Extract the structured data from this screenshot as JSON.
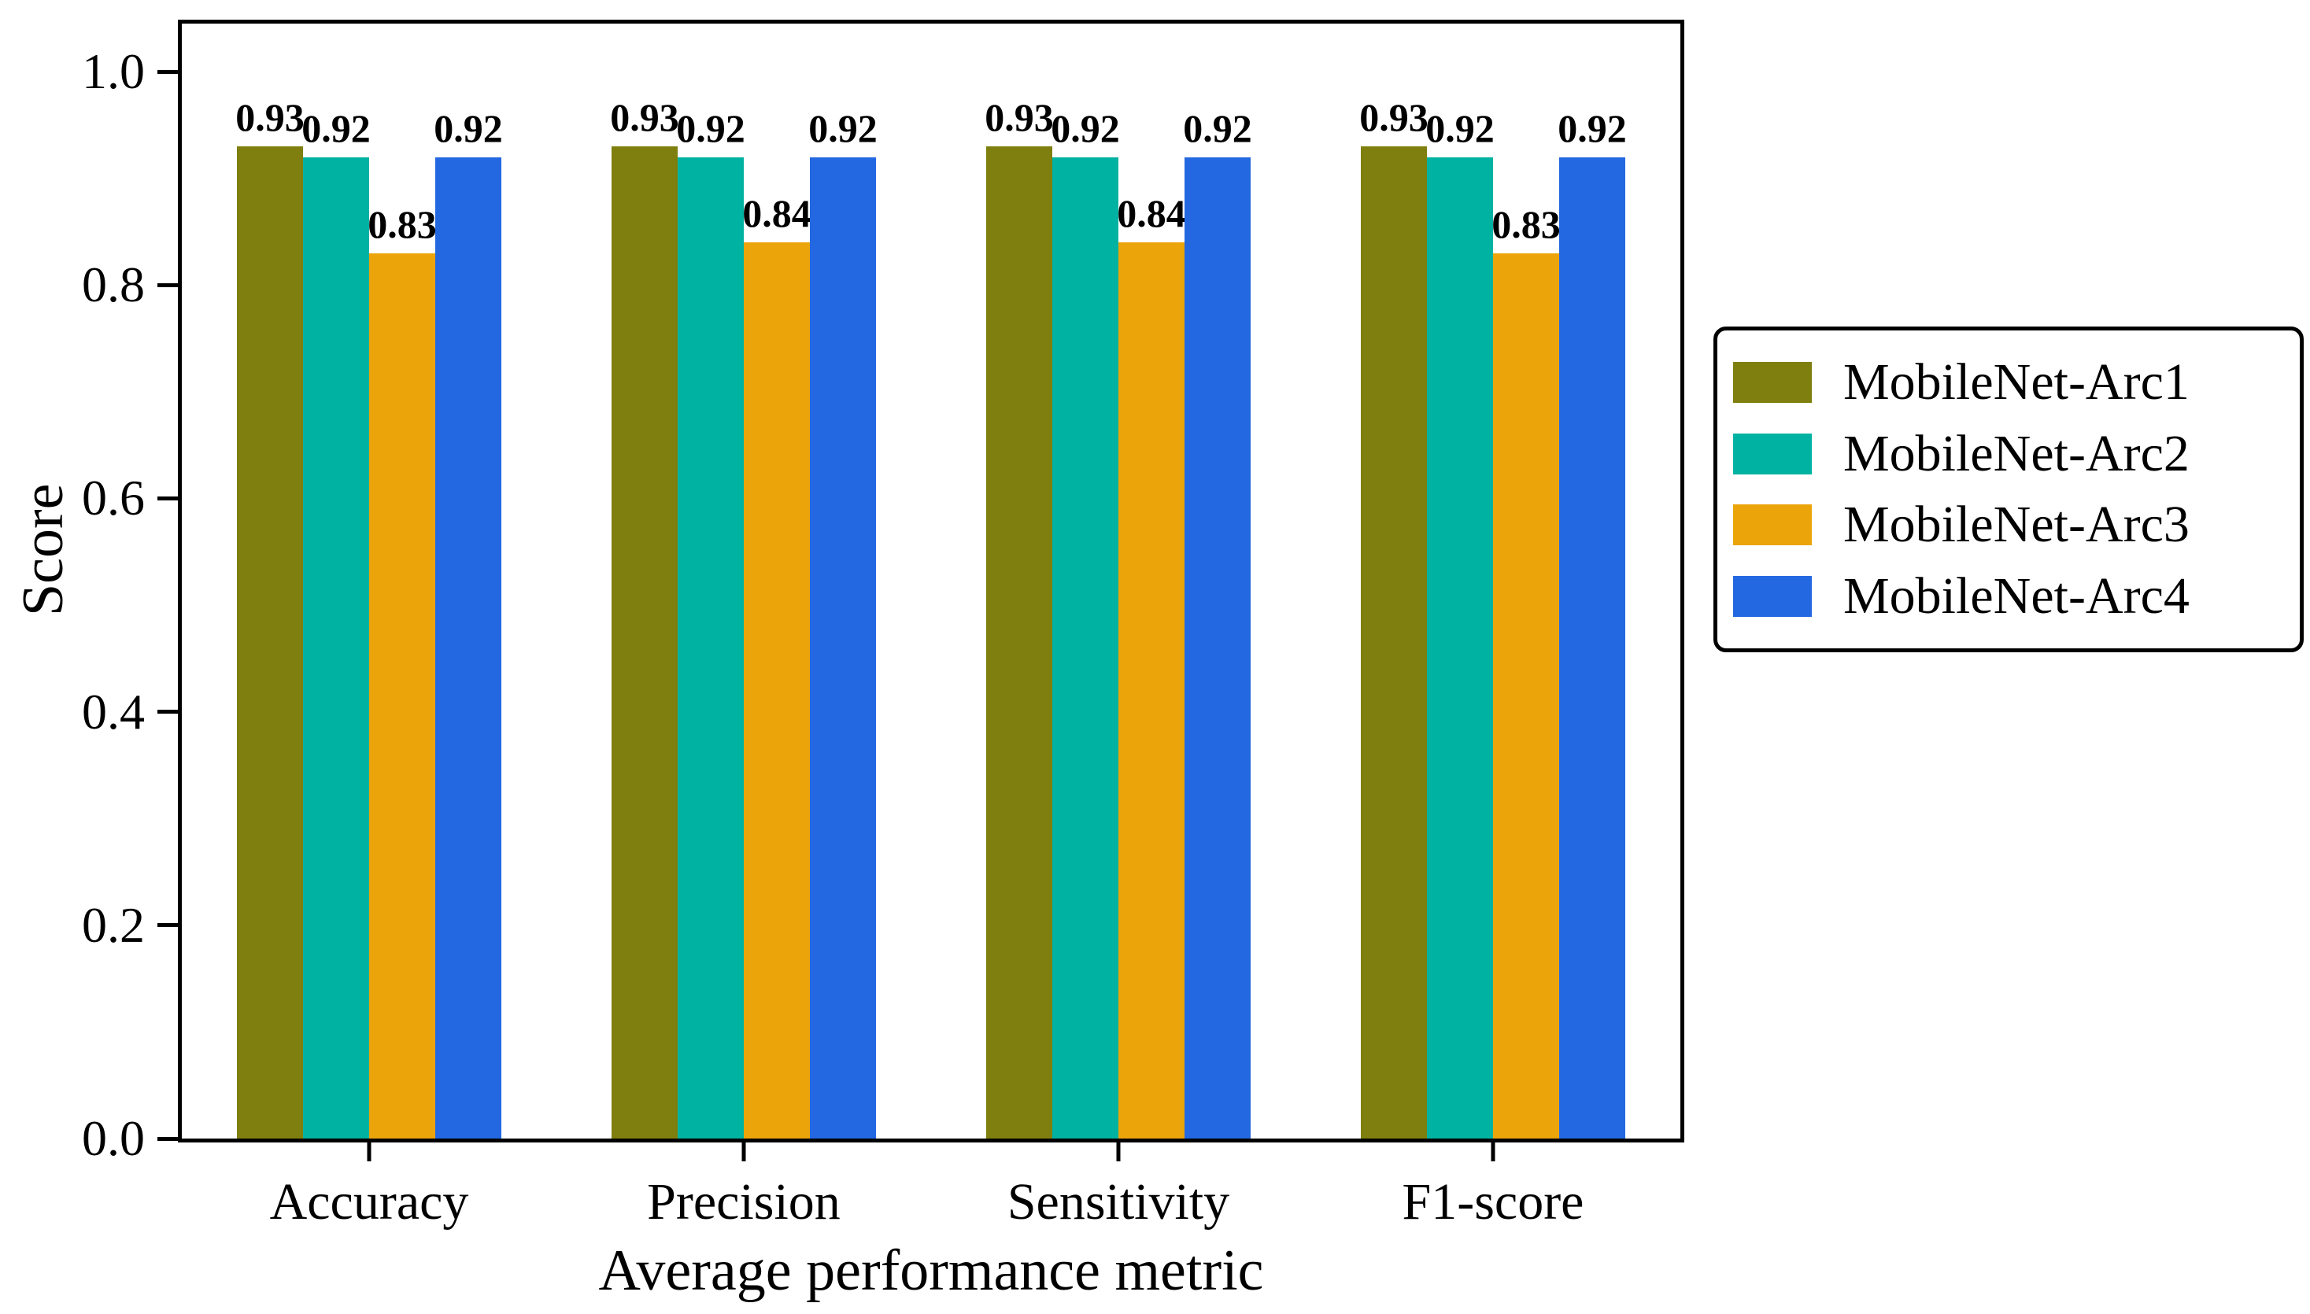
{
  "chart_data": {
    "type": "bar",
    "title": "",
    "xlabel": "Average performance metric",
    "ylabel": "Score",
    "categories": [
      "Accuracy",
      "Precision",
      "Sensitivity",
      "F1-score"
    ],
    "series": [
      {
        "name": "MobileNet-Arc1",
        "color": "#7e7f0e",
        "values": [
          0.93,
          0.93,
          0.93,
          0.93
        ]
      },
      {
        "name": "MobileNet-Arc2",
        "color": "#00b2a2",
        "values": [
          0.92,
          0.92,
          0.92,
          0.92
        ]
      },
      {
        "name": "MobileNet-Arc3",
        "color": "#eba50b",
        "values": [
          0.83,
          0.84,
          0.84,
          0.83
        ]
      },
      {
        "name": "MobileNet-Arc4",
        "color": "#2468e1",
        "values": [
          0.92,
          0.92,
          0.92,
          0.92
        ]
      }
    ],
    "bar_value_labels": [
      [
        "0.93",
        "0.92",
        "0.83",
        "0.92"
      ],
      [
        "0.93",
        "0.92",
        "0.84",
        "0.92"
      ],
      [
        "0.93",
        "0.92",
        "0.84",
        "0.92"
      ],
      [
        "0.93",
        "0.92",
        "0.83",
        "0.92"
      ]
    ],
    "yticks": [
      0.0,
      0.2,
      0.4,
      0.6,
      0.8,
      1.0
    ],
    "ytick_labels": [
      "0.0",
      "0.2",
      "0.4",
      "0.6",
      "0.8",
      "1.0"
    ],
    "ylim": [
      0.0,
      1.045
    ],
    "grid": false,
    "legend": {
      "position": "right",
      "entries": [
        "MobileNet-Arc1",
        "MobileNet-Arc2",
        "MobileNet-Arc3",
        "MobileNet-Arc4"
      ]
    },
    "colors": {
      "axis": "#000000",
      "text": "#000000",
      "background": "#ffffff"
    }
  }
}
